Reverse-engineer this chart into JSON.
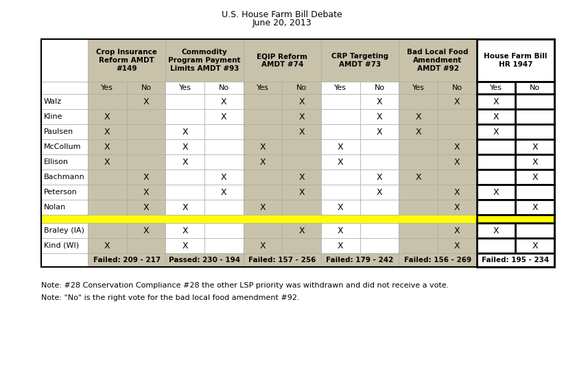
{
  "title_line1": "U.S. House Farm Bill Debate",
  "title_line2": "June 20, 2013",
  "col_groups": [
    {
      "label": "Crop Insurance\nReform AMDT\n#149",
      "shaded": true
    },
    {
      "label": "Commodity\nProgram Payment\nLimits AMDT #93",
      "shaded": false
    },
    {
      "label": "EQIP Reform\nAMDT #74",
      "shaded": true
    },
    {
      "label": "CRP Targeting\nAMDT #73",
      "shaded": false
    },
    {
      "label": "Bad Local Food\nAmendment\nAMDT #92",
      "shaded": true
    },
    {
      "label": "House Farm Bill\nHR 1947",
      "shaded": false,
      "bold_border": true
    }
  ],
  "rows": [
    {
      "name": "Walz",
      "votes": [
        "",
        "X",
        "",
        "X",
        "",
        "X",
        "",
        "X",
        "",
        "X",
        "X",
        ""
      ]
    },
    {
      "name": "Kline",
      "votes": [
        "X",
        "",
        "",
        "X",
        "",
        "X",
        "",
        "X",
        "X",
        "",
        "X",
        ""
      ]
    },
    {
      "name": "Paulsen",
      "votes": [
        "X",
        "",
        "X",
        "",
        "",
        "X",
        "",
        "X",
        "X",
        "",
        "X",
        ""
      ]
    },
    {
      "name": "McCollum",
      "votes": [
        "X",
        "",
        "X",
        "",
        "X",
        "",
        "X",
        "",
        "",
        "X",
        "",
        "X"
      ]
    },
    {
      "name": "Ellison",
      "votes": [
        "X",
        "",
        "X",
        "",
        "X",
        "",
        "X",
        "",
        "",
        "X",
        "",
        "X"
      ]
    },
    {
      "name": "Bachmann",
      "votes": [
        "",
        "X",
        "",
        "X",
        "",
        "X",
        "",
        "X",
        "X",
        "",
        "",
        "X"
      ]
    },
    {
      "name": "Peterson",
      "votes": [
        "",
        "X",
        "",
        "X",
        "",
        "X",
        "",
        "X",
        "",
        "X",
        "X",
        ""
      ]
    },
    {
      "name": "Nolan",
      "votes": [
        "",
        "X",
        "X",
        "",
        "X",
        "",
        "X",
        "",
        "",
        "X",
        "",
        "X"
      ]
    }
  ],
  "rows2": [
    {
      "name": "Braley (IA)",
      "votes": [
        "",
        "X",
        "X",
        "",
        "",
        "X",
        "X",
        "",
        "",
        "X",
        "X",
        ""
      ]
    },
    {
      "name": "Kind (WI)",
      "votes": [
        "X",
        "",
        "X",
        "",
        "X",
        "",
        "X",
        "",
        "",
        "X",
        "",
        "X"
      ]
    }
  ],
  "footer_row": [
    "Failed: 209 - 217",
    "Passed: 230 - 194",
    "Failed: 157 - 256",
    "Failed: 179 - 242",
    "Failed: 156 - 269",
    "Failed: 195 - 234"
  ],
  "note1": "Note: #28 Conservation Compliance #28 the other LSP priority was withdrawn and did not receive a vote.",
  "note2": "Note: \"No\" is the right vote for the bad local food amendment #92.",
  "shaded_color": "#c8c2aa",
  "white_color": "#ffffff",
  "yellow_color": "#ffff00",
  "light_gray": "#e8e4d4"
}
